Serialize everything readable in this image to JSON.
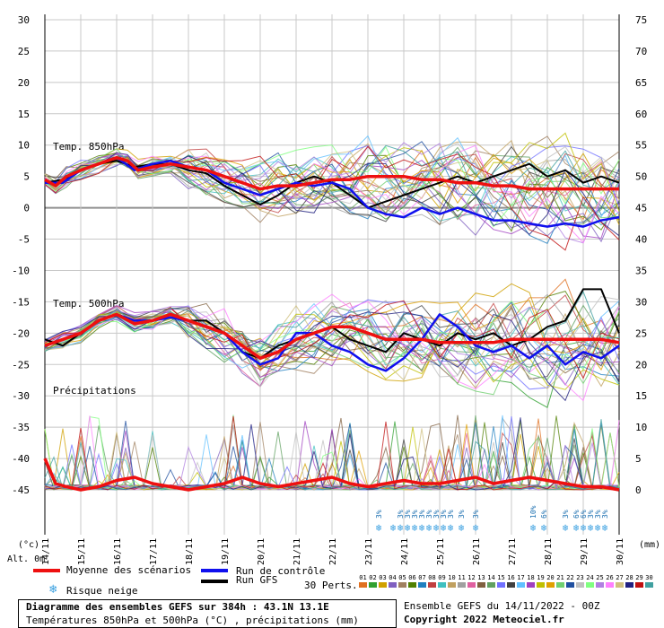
{
  "chart_data": {
    "type": "line",
    "left_axis_ticks": [
      30,
      25,
      20,
      15,
      10,
      5,
      0,
      -5,
      -10,
      -15,
      -20,
      -25,
      -30,
      -35,
      -40,
      -45
    ],
    "right_axis_ticks": [
      75,
      70,
      65,
      60,
      55,
      50,
      45,
      40,
      35,
      30,
      25,
      20,
      15,
      10,
      5,
      0
    ],
    "left_axis_unit": "(°c)",
    "right_axis_unit": "(mm)",
    "alt_label": "Alt. 0m",
    "x_labels": [
      "14/11",
      "15/11",
      "16/11",
      "17/11",
      "18/11",
      "19/11",
      "20/11",
      "21/11",
      "22/11",
      "23/11",
      "24/11",
      "25/11",
      "26/11",
      "27/11",
      "28/11",
      "29/11",
      "30/11"
    ],
    "panel_labels": [
      "Temp. 850hPa",
      "Temp. 500hPa",
      "Précipitations"
    ],
    "mean_850": [
      [
        0,
        4.5
      ],
      [
        0.3,
        3.5
      ],
      [
        0.6,
        5
      ],
      [
        1,
        6
      ],
      [
        1.5,
        7
      ],
      [
        2,
        8
      ],
      [
        2.3,
        7.5
      ],
      [
        2.6,
        6
      ],
      [
        3,
        6.5
      ],
      [
        3.5,
        7
      ],
      [
        4,
        6.5
      ],
      [
        4.5,
        6
      ],
      [
        5,
        5
      ],
      [
        5.5,
        4
      ],
      [
        6,
        3
      ],
      [
        6.5,
        3.5
      ],
      [
        7,
        3.5
      ],
      [
        7.5,
        4
      ],
      [
        8,
        4.5
      ],
      [
        8.5,
        4.5
      ],
      [
        9,
        5
      ],
      [
        9.5,
        5
      ],
      [
        10,
        5
      ],
      [
        10.5,
        4.5
      ],
      [
        11,
        4.5
      ],
      [
        11.5,
        4
      ],
      [
        12,
        4
      ],
      [
        12.5,
        3.5
      ],
      [
        13,
        3.5
      ],
      [
        13.5,
        3
      ],
      [
        14,
        3
      ],
      [
        14.5,
        3
      ],
      [
        15,
        3
      ],
      [
        15.5,
        3
      ],
      [
        16,
        3
      ]
    ],
    "control_850": [
      [
        0,
        4
      ],
      [
        0.5,
        4
      ],
      [
        1,
        6
      ],
      [
        1.5,
        7
      ],
      [
        2,
        8
      ],
      [
        2.5,
        6
      ],
      [
        3,
        7
      ],
      [
        3.5,
        7.5
      ],
      [
        4,
        6.5
      ],
      [
        4.5,
        6
      ],
      [
        5,
        4
      ],
      [
        5.5,
        3
      ],
      [
        6,
        2
      ],
      [
        6.5,
        3
      ],
      [
        7,
        4
      ],
      [
        7.5,
        3.5
      ],
      [
        8,
        4
      ],
      [
        8.5,
        3
      ],
      [
        9,
        0
      ],
      [
        9.5,
        -1
      ],
      [
        10,
        -1.5
      ],
      [
        10.5,
        0
      ],
      [
        11,
        -1
      ],
      [
        11.5,
        0
      ],
      [
        12,
        -1
      ],
      [
        12.5,
        -2
      ],
      [
        13,
        -2
      ],
      [
        13.5,
        -2.5
      ],
      [
        14,
        -3
      ],
      [
        14.5,
        -2.5
      ],
      [
        15,
        -3
      ],
      [
        15.5,
        -2
      ],
      [
        16,
        -1.5
      ]
    ],
    "gfs_850": [
      [
        0,
        4
      ],
      [
        0.5,
        4.5
      ],
      [
        1,
        6
      ],
      [
        1.5,
        7
      ],
      [
        2,
        7.5
      ],
      [
        2.5,
        6.5
      ],
      [
        3,
        7
      ],
      [
        3.5,
        7
      ],
      [
        4,
        6
      ],
      [
        4.5,
        5.5
      ],
      [
        5,
        3.5
      ],
      [
        5.5,
        2
      ],
      [
        6,
        0.5
      ],
      [
        6.5,
        2
      ],
      [
        7,
        4
      ],
      [
        7.5,
        5
      ],
      [
        8,
        4
      ],
      [
        8.5,
        2
      ],
      [
        9,
        0
      ],
      [
        9.5,
        1
      ],
      [
        10,
        2
      ],
      [
        10.5,
        3
      ],
      [
        11,
        4
      ],
      [
        11.5,
        5
      ],
      [
        12,
        4
      ],
      [
        12.5,
        5
      ],
      [
        13,
        6
      ],
      [
        13.5,
        7
      ],
      [
        14,
        5
      ],
      [
        14.5,
        6
      ],
      [
        15,
        4
      ],
      [
        15.5,
        5
      ],
      [
        16,
        4
      ]
    ],
    "mean_500": [
      [
        0,
        -22
      ],
      [
        0.5,
        -21
      ],
      [
        1,
        -20
      ],
      [
        1.5,
        -18
      ],
      [
        2,
        -17
      ],
      [
        2.5,
        -18.5
      ],
      [
        3,
        -18
      ],
      [
        3.5,
        -17
      ],
      [
        4,
        -18
      ],
      [
        4.5,
        -19
      ],
      [
        5,
        -20
      ],
      [
        5.5,
        -22
      ],
      [
        6,
        -24
      ],
      [
        6.5,
        -23
      ],
      [
        7,
        -21
      ],
      [
        7.5,
        -20
      ],
      [
        8,
        -19
      ],
      [
        8.5,
        -19
      ],
      [
        9,
        -20
      ],
      [
        9.5,
        -21
      ],
      [
        10,
        -21
      ],
      [
        10.5,
        -21
      ],
      [
        11,
        -21.5
      ],
      [
        11.5,
        -21.5
      ],
      [
        12,
        -21.5
      ],
      [
        12.5,
        -21.5
      ],
      [
        13,
        -21
      ],
      [
        13.5,
        -21
      ],
      [
        14,
        -21
      ],
      [
        14.5,
        -21
      ],
      [
        15,
        -21
      ],
      [
        15.5,
        -21
      ],
      [
        16,
        -21.5
      ]
    ],
    "control_500": [
      [
        0,
        -22
      ],
      [
        0.5,
        -21
      ],
      [
        1,
        -20
      ],
      [
        1.5,
        -18
      ],
      [
        2,
        -17
      ],
      [
        2.5,
        -18
      ],
      [
        3,
        -18
      ],
      [
        3.5,
        -17.5
      ],
      [
        4,
        -18
      ],
      [
        4.5,
        -19
      ],
      [
        5,
        -20
      ],
      [
        5.5,
        -23
      ],
      [
        6,
        -25
      ],
      [
        6.5,
        -24
      ],
      [
        7,
        -20
      ],
      [
        7.5,
        -20
      ],
      [
        8,
        -22
      ],
      [
        8.5,
        -23
      ],
      [
        9,
        -25
      ],
      [
        9.5,
        -26
      ],
      [
        10,
        -24
      ],
      [
        10.5,
        -21
      ],
      [
        11,
        -17
      ],
      [
        11.5,
        -19
      ],
      [
        12,
        -22
      ],
      [
        12.5,
        -23
      ],
      [
        13,
        -22
      ],
      [
        13.5,
        -24
      ],
      [
        14,
        -22
      ],
      [
        14.5,
        -25
      ],
      [
        15,
        -23
      ],
      [
        15.5,
        -24
      ],
      [
        16,
        -22
      ]
    ],
    "gfs_500": [
      [
        0,
        -21
      ],
      [
        0.5,
        -22
      ],
      [
        1,
        -20
      ],
      [
        1.5,
        -18
      ],
      [
        2,
        -17
      ],
      [
        2.5,
        -18
      ],
      [
        3,
        -18
      ],
      [
        3.5,
        -17
      ],
      [
        4,
        -18
      ],
      [
        4.5,
        -18
      ],
      [
        5,
        -20
      ],
      [
        5.5,
        -23
      ],
      [
        6,
        -24
      ],
      [
        6.5,
        -22
      ],
      [
        7,
        -21
      ],
      [
        7.5,
        -20
      ],
      [
        8,
        -19
      ],
      [
        8.5,
        -21
      ],
      [
        9,
        -22
      ],
      [
        9.5,
        -23
      ],
      [
        10,
        -20
      ],
      [
        10.5,
        -21
      ],
      [
        11,
        -22
      ],
      [
        11.5,
        -20
      ],
      [
        12,
        -21
      ],
      [
        12.5,
        -20
      ],
      [
        13,
        -22
      ],
      [
        13.5,
        -21
      ],
      [
        14,
        -19
      ],
      [
        14.5,
        -18
      ],
      [
        15,
        -13
      ],
      [
        15.5,
        -13
      ],
      [
        16,
        -20
      ]
    ],
    "mean_precip_mm": [
      [
        0,
        5
      ],
      [
        0.3,
        1
      ],
      [
        0.6,
        0.5
      ],
      [
        1,
        0
      ],
      [
        1.5,
        0.5
      ],
      [
        2,
        1.5
      ],
      [
        2.5,
        2
      ],
      [
        3,
        1
      ],
      [
        3.5,
        0.5
      ],
      [
        4,
        0
      ],
      [
        4.5,
        0.5
      ],
      [
        5,
        1
      ],
      [
        5.5,
        2
      ],
      [
        6,
        1
      ],
      [
        6.5,
        0.5
      ],
      [
        7,
        1
      ],
      [
        7.5,
        1.5
      ],
      [
        8,
        2
      ],
      [
        8.5,
        1
      ],
      [
        9,
        0.5
      ],
      [
        9.5,
        1
      ],
      [
        10,
        1.5
      ],
      [
        10.5,
        1
      ],
      [
        11,
        1
      ],
      [
        11.5,
        1.5
      ],
      [
        12,
        2
      ],
      [
        12.5,
        1
      ],
      [
        13,
        1.5
      ],
      [
        13.5,
        2
      ],
      [
        14,
        1.5
      ],
      [
        14.5,
        1
      ],
      [
        15,
        0.5
      ],
      [
        15.5,
        0.5
      ],
      [
        16,
        0
      ]
    ],
    "snow_risk": [
      {
        "x": 9.3,
        "p": "3%"
      },
      {
        "x": 9.7,
        "p": ""
      },
      {
        "x": 9.9,
        "p": "3%"
      },
      {
        "x": 10.1,
        "p": "3%"
      },
      {
        "x": 10.3,
        "p": "3%"
      },
      {
        "x": 10.5,
        "p": "3%"
      },
      {
        "x": 10.7,
        "p": "3%"
      },
      {
        "x": 10.9,
        "p": "3%"
      },
      {
        "x": 11.1,
        "p": "3%"
      },
      {
        "x": 11.3,
        "p": "3%"
      },
      {
        "x": 11.6,
        "p": "3%"
      },
      {
        "x": 12.0,
        "p": "3%"
      },
      {
        "x": 13.6,
        "p": "10%"
      },
      {
        "x": 13.9,
        "p": "6%"
      },
      {
        "x": 14.5,
        "p": "3%"
      },
      {
        "x": 14.8,
        "p": "6%"
      },
      {
        "x": 15.0,
        "p": "6%"
      },
      {
        "x": 15.2,
        "p": "3%"
      },
      {
        "x": 15.4,
        "p": "3%"
      },
      {
        "x": 15.6,
        "p": "3%"
      }
    ]
  },
  "legend": {
    "mean": "Moyenne des scénarios",
    "control": "Run de contrôle",
    "gfs": "Run GFS",
    "snow": "Risque neige",
    "perts_label": "30 Perts.",
    "perts": [
      "01",
      "02",
      "03",
      "04",
      "05",
      "06",
      "07",
      "08",
      "09",
      "10",
      "11",
      "12",
      "13",
      "14",
      "15",
      "16",
      "17",
      "18",
      "19",
      "20",
      "21",
      "22",
      "23",
      "24",
      "25",
      "26",
      "27",
      "28",
      "29",
      "30"
    ],
    "pert_colors": [
      "#e07020",
      "#30a030",
      "#d0a000",
      "#8060c0",
      "#a08060",
      "#508000",
      "#2080c0",
      "#c04040",
      "#40c0c0",
      "#c0a060",
      "#a0a0a0",
      "#e060a0",
      "#806040",
      "#60a060",
      "#7070ff",
      "#404040",
      "#60c0ff",
      "#a040c0",
      "#c0c000",
      "#e0a000",
      "#70d070",
      "#2050a0",
      "#c0c0c0",
      "#80ff80",
      "#b080e0",
      "#ff80ff",
      "#d0c080",
      "#202080",
      "#c01010",
      "#40a0a0"
    ]
  },
  "mean_color": "#ee1010",
  "control_color": "#1010ee",
  "gfs_color": "#000000",
  "info": {
    "title": "Diagramme des ensembles GEFS sur 384h : 43.1N 13.1E",
    "subtitle": "Températures 850hPa et 500hPa (°C) , précipitations (mm)",
    "run": "Ensemble GEFS du 14/11/2022 - 00Z",
    "copyright": "Copyright 2022 Meteociel.fr"
  }
}
